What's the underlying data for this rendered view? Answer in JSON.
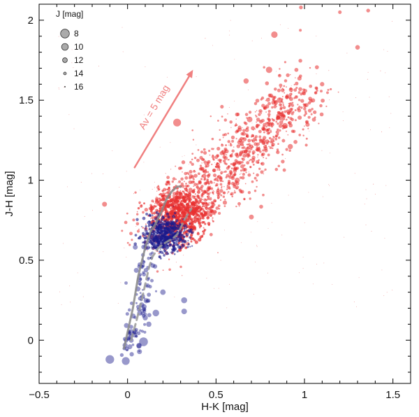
{
  "chart_data": {
    "type": "scatter",
    "title": "",
    "xlabel": "H-K [mag]",
    "ylabel": "J-H [mag]",
    "xlim": [
      -0.5,
      1.6
    ],
    "ylim": [
      -0.27,
      2.1
    ],
    "x_ticks": [
      {
        "value": -0.5,
        "label": "−0.5"
      },
      {
        "value": 0,
        "label": "0"
      },
      {
        "value": 0.5,
        "label": "0.5"
      },
      {
        "value": 1,
        "label": "1"
      },
      {
        "value": 1.5,
        "label": "1.5"
      }
    ],
    "y_ticks": [
      {
        "value": 0,
        "label": "0"
      },
      {
        "value": 0.5,
        "label": "0.5"
      },
      {
        "value": 1,
        "label": "1"
      },
      {
        "value": 1.5,
        "label": "1.5"
      },
      {
        "value": 2,
        "label": "2"
      }
    ],
    "grid": false,
    "size_legend": {
      "title": "J [mag]",
      "position": "top-left",
      "entries": [
        {
          "label": "8",
          "jmag": 8
        },
        {
          "label": "10",
          "jmag": 10
        },
        {
          "label": "12",
          "jmag": 12
        },
        {
          "label": "14",
          "jmag": 14
        },
        {
          "label": "16",
          "jmag": 16
        }
      ]
    },
    "reddening_vector": {
      "label": "Av = 5 mag",
      "x0": 0.04,
      "y0": 1.08,
      "x1": 0.37,
      "y1": 1.69,
      "color": "#f08080"
    },
    "tracks": [
      {
        "name": "main-sequence-track",
        "style": "solid",
        "color": "#888888",
        "x": [
          -0.02,
          0.0,
          0.03,
          0.06,
          0.1,
          0.13,
          0.16,
          0.19,
          0.22,
          0.25,
          0.28,
          0.3
        ],
        "y": [
          -0.05,
          0.05,
          0.2,
          0.4,
          0.58,
          0.68,
          0.73,
          0.8,
          0.88,
          0.93,
          0.96,
          0.96
        ]
      },
      {
        "name": "giant-branch-track",
        "style": "dashed",
        "color": "#999999",
        "x": [
          0.02,
          0.05,
          0.08,
          0.1,
          0.12,
          0.14,
          0.17,
          0.2,
          0.23,
          0.26,
          0.28,
          0.3,
          0.32,
          0.36
        ],
        "y": [
          0.0,
          0.12,
          0.25,
          0.35,
          0.45,
          0.52,
          0.57,
          0.6,
          0.62,
          0.64,
          0.66,
          0.7,
          0.75,
          0.82
        ]
      }
    ],
    "series": [
      {
        "name": "foreground-stars",
        "color": "#1a1a8c",
        "highlight": [
          {
            "x": -0.1,
            "y": -0.12,
            "j": 8.2
          },
          {
            "x": 0.09,
            "y": -0.01,
            "j": 8.0
          },
          {
            "x": -0.01,
            "y": -0.13,
            "j": 9.0
          },
          {
            "x": 0.16,
            "y": 0.17,
            "j": 10.2
          },
          {
            "x": 0.32,
            "y": 0.25,
            "j": 10.8
          },
          {
            "x": 0.32,
            "y": 0.18,
            "j": 11.2
          },
          {
            "x": 0.02,
            "y": 0.05,
            "j": 10.5
          },
          {
            "x": 0.2,
            "y": 0.3,
            "j": 11.3
          },
          {
            "x": 0.12,
            "y": 0.1,
            "j": 11.5
          },
          {
            "x": 0.1,
            "y": 0.14,
            "j": 11.6
          },
          {
            "x": 0.08,
            "y": 0.22,
            "j": 11.5
          }
        ]
      },
      {
        "name": "reddened-stars",
        "color": "#e83030",
        "highlight": [
          {
            "x": 0.28,
            "y": 1.36,
            "j": 9.0
          },
          {
            "x": 0.83,
            "y": 1.91,
            "j": 10.3
          },
          {
            "x": 0.8,
            "y": 1.69,
            "j": 10.4
          },
          {
            "x": 0.67,
            "y": 1.62,
            "j": 11.5
          },
          {
            "x": 0.86,
            "y": 1.5,
            "j": 11.3
          },
          {
            "x": -0.13,
            "y": 0.85,
            "j": 11.8
          },
          {
            "x": 0.69,
            "y": 1.38,
            "j": 11.2
          },
          {
            "x": 0.89,
            "y": 1.34,
            "j": 11.2
          },
          {
            "x": 0.92,
            "y": 1.21,
            "j": 11.6
          },
          {
            "x": 1.3,
            "y": 1.83,
            "j": 12.2
          },
          {
            "x": 1.1,
            "y": 1.6,
            "j": 12.4
          },
          {
            "x": 0.62,
            "y": 1.0,
            "j": 11.6
          },
          {
            "x": 0.7,
            "y": 0.77,
            "j": 12.0
          },
          {
            "x": 0.55,
            "y": 0.86,
            "j": 12.5
          },
          {
            "x": 0.98,
            "y": 2.08,
            "j": 13.0
          },
          {
            "x": 1.2,
            "y": 2.05,
            "j": 13.2
          },
          {
            "x": 1.36,
            "y": 2.06,
            "j": 13.0
          }
        ]
      }
    ]
  }
}
